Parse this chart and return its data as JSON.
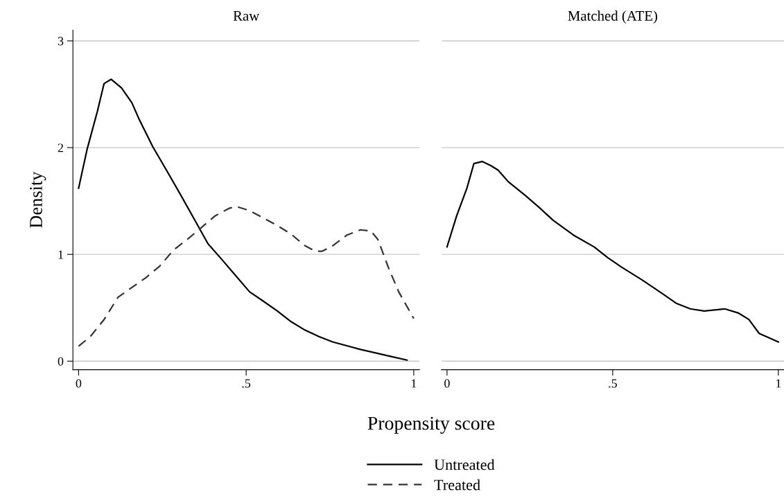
{
  "chart_data": [
    {
      "type": "line",
      "title": "Raw",
      "xlabel": "Propensity score",
      "ylabel": "Density",
      "xlim": [
        -0.017,
        1.017
      ],
      "ylim": [
        -0.08,
        3.1
      ],
      "xticks": [
        0,
        {
          "value": 0.5,
          "label": ".5"
        },
        1
      ],
      "yticks": [
        0,
        1,
        2,
        3
      ],
      "grid": "y",
      "legend": "bottom",
      "marker": "none",
      "series": [
        {
          "name": "Untreated",
          "color": "#000000",
          "line_style": "solid",
          "x": [
            0,
            0.025,
            0.056,
            0.076,
            0.097,
            0.128,
            0.159,
            0.18,
            0.221,
            0.262,
            0.304,
            0.345,
            0.386,
            0.428,
            0.469,
            0.51,
            0.552,
            0.593,
            0.634,
            0.676,
            0.717,
            0.758,
            0.841,
            0.924,
            0.98
          ],
          "values": [
            1.62,
            1.98,
            2.34,
            2.6,
            2.64,
            2.56,
            2.42,
            2.27,
            2.01,
            1.79,
            1.56,
            1.33,
            1.1,
            0.95,
            0.8,
            0.65,
            0.56,
            0.47,
            0.37,
            0.29,
            0.23,
            0.18,
            0.11,
            0.05,
            0.01
          ]
        },
        {
          "name": "Treated",
          "color": "#333333",
          "line_style": "dashed",
          "x": [
            0,
            0.035,
            0.076,
            0.118,
            0.159,
            0.2,
            0.242,
            0.283,
            0.324,
            0.366,
            0.407,
            0.448,
            0.469,
            0.51,
            0.552,
            0.593,
            0.634,
            0.676,
            0.707,
            0.727,
            0.758,
            0.8,
            0.841,
            0.872,
            0.893,
            0.924,
            0.955,
            1
          ],
          "values": [
            0.14,
            0.23,
            0.39,
            0.6,
            0.69,
            0.78,
            0.89,
            1.04,
            1.14,
            1.25,
            1.36,
            1.43,
            1.45,
            1.41,
            1.34,
            1.27,
            1.19,
            1.08,
            1.03,
            1.03,
            1.08,
            1.18,
            1.23,
            1.22,
            1.14,
            0.88,
            0.65,
            0.4
          ]
        }
      ]
    },
    {
      "type": "line",
      "title": "Matched (ATE)",
      "xlim": [
        -0.017,
        1.017
      ],
      "ylim": [
        -0.08,
        3.1
      ],
      "xticks": [
        0,
        {
          "value": 0.5,
          "label": ".5"
        },
        1
      ],
      "yticks": [
        0,
        1,
        2,
        3
      ],
      "grid": "y",
      "tick_labels": "x",
      "marker": "none",
      "series": [
        {
          "color": "#000000",
          "line_style": "solid",
          "x": [
            0,
            0.029,
            0.06,
            0.081,
            0.106,
            0.133,
            0.154,
            0.185,
            0.237,
            0.278,
            0.32,
            0.382,
            0.444,
            0.485,
            0.527,
            0.589,
            0.651,
            0.693,
            0.734,
            0.776,
            0.838,
            0.88,
            0.911,
            0.942,
            1
          ],
          "values": [
            1.07,
            1.36,
            1.62,
            1.85,
            1.87,
            1.83,
            1.79,
            1.68,
            1.55,
            1.44,
            1.32,
            1.18,
            1.07,
            0.97,
            0.88,
            0.76,
            0.63,
            0.54,
            0.49,
            0.47,
            0.49,
            0.45,
            0.39,
            0.26,
            0.18
          ]
        }
      ]
    }
  ]
}
